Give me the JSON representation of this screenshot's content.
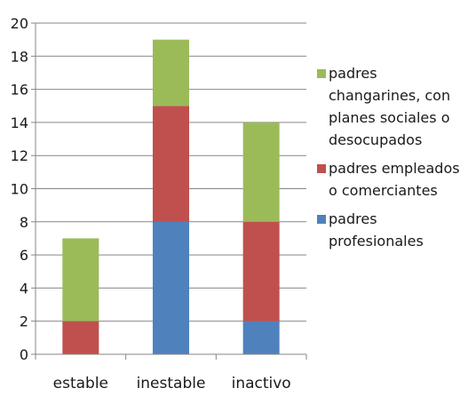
{
  "chart_data": {
    "type": "bar",
    "stacked": true,
    "categories": [
      "estable",
      "inestable",
      "inactivo"
    ],
    "series": [
      {
        "name": "padres profesionales",
        "values": [
          0,
          8,
          2
        ],
        "color": "#4f81bd"
      },
      {
        "name": "padres empleados o comerciantes",
        "values": [
          2,
          7,
          6
        ],
        "color": "#c0504d"
      },
      {
        "name": "padres changarines, con planes sociales o desocupados",
        "values": [
          5,
          4,
          6
        ],
        "color": "#9bbb59"
      }
    ],
    "yticks": [
      "0",
      "2",
      "4",
      "6",
      "8",
      "10",
      "12",
      "14",
      "16",
      "18",
      "20"
    ],
    "ylim": [
      0,
      20
    ],
    "grid": true,
    "legend_position": "right",
    "legend": [
      "padres changarines, con planes sociales o desocupados",
      "padres empleados o comerciantes",
      "padres profesionales"
    ]
  }
}
